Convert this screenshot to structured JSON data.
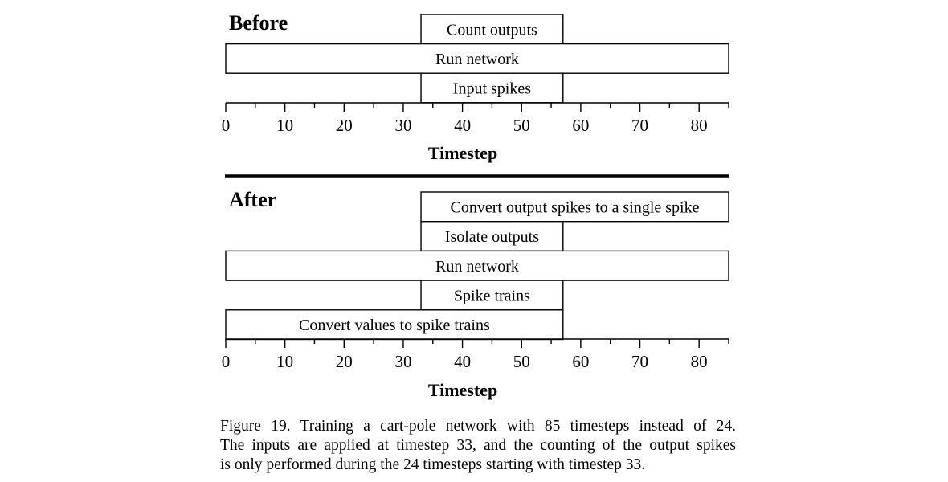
{
  "panels": [
    {
      "id": "before",
      "title": "Before",
      "axis": {
        "label": "Timestep",
        "min": 0,
        "max": 85,
        "major_ticks": [
          0,
          10,
          20,
          30,
          40,
          50,
          60,
          70,
          80
        ],
        "minor_ticks": [
          5,
          15,
          25,
          35,
          45,
          55,
          65,
          75,
          85
        ]
      },
      "rows": [
        {
          "label": "Count outputs",
          "start": 33,
          "end": 57
        },
        {
          "label": "Run network",
          "start": 0,
          "end": 85
        },
        {
          "label": "Input spikes",
          "start": 33,
          "end": 57
        }
      ]
    },
    {
      "id": "after",
      "title": "After",
      "axis": {
        "label": "Timestep",
        "min": 0,
        "max": 85,
        "major_ticks": [
          0,
          10,
          20,
          30,
          40,
          50,
          60,
          70,
          80
        ],
        "minor_ticks": [
          5,
          15,
          25,
          35,
          45,
          55,
          65,
          75,
          85
        ]
      },
      "rows": [
        {
          "label": "Convert output spikes to a single spike",
          "start": 33,
          "end": 85
        },
        {
          "label": "Isolate outputs",
          "start": 33,
          "end": 57
        },
        {
          "label": "Run network",
          "start": 0,
          "end": 85
        },
        {
          "label": "Spike trains",
          "start": 33,
          "end": 57
        },
        {
          "label": "Convert values to spike trains",
          "start": 0,
          "end": 57
        }
      ]
    }
  ],
  "caption": {
    "lines": [
      "Figure 19. Training a cart-pole network with 85 timesteps instead of 24.",
      "The inputs are applied at timestep 33, and the counting of the output spikes",
      "is only performed during the 24 timesteps starting with timestep 33."
    ]
  }
}
